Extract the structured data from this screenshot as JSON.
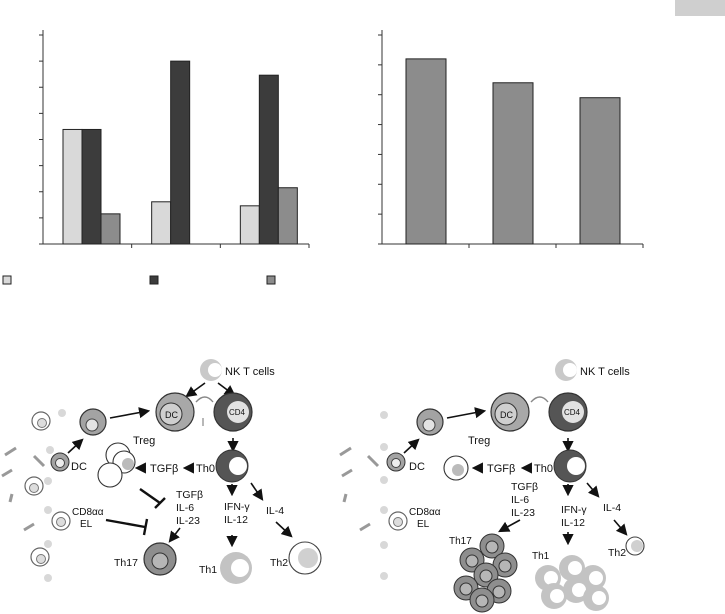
{
  "chart_data": [
    {
      "type": "bar",
      "categories": [
        "",
        "",
        ""
      ],
      "series": [
        {
          "values": [
            57,
            21,
            19
          ],
          "color": "#d9d9d9"
        },
        {
          "values": [
            57,
            91,
            84
          ],
          "color": "#3c3c3c"
        },
        {
          "values": [
            15,
            0,
            28
          ],
          "color": "#8c8c8c"
        }
      ],
      "ylim": [
        0,
        104
      ],
      "yticks": 8,
      "legend_swatches": [
        "#d9d9d9",
        "#3c3c3c",
        "#8c8c8c"
      ],
      "grid": false
    },
    {
      "type": "bar",
      "categories": [
        "",
        "",
        ""
      ],
      "series": [
        {
          "values": [
            6.2,
            5.4,
            4.9
          ],
          "color": "#8c8c8c"
        }
      ],
      "ylim": [
        0,
        7
      ],
      "yticks": 7,
      "grid": false
    }
  ],
  "diagram": {
    "left": {
      "nkt": "NK T cells",
      "dc_main": "DC",
      "cd4": "CD4",
      "treg": "Treg",
      "dc_side": "DC",
      "tgfb": "TGFβ",
      "th0": "Th0",
      "cyto_th17": [
        "TGFβ",
        "IL-6",
        "IL-23"
      ],
      "ifn": "IFN-γ",
      "il12": "IL-12",
      "il4": "IL-4",
      "cd8": "CD8αα",
      "el": "EL",
      "th17": "Th17",
      "th1": "Th1",
      "th2": "Th2"
    },
    "right": {
      "nkt": "NK T cells",
      "dc_main": "DC",
      "cd4": "CD4",
      "treg": "Treg",
      "dc_side": "DC",
      "tgfb": "TGFβ",
      "th0": "Th0",
      "cyto_th17": [
        "TGFβ",
        "IL-6",
        "IL-23"
      ],
      "ifn": "IFN-γ",
      "il12": "IL-12",
      "il4": "IL-4",
      "cd8": "CD8αα",
      "el": "EL",
      "th17": "Th17",
      "th1": "Th1",
      "th2": "Th2"
    }
  },
  "colors": {
    "light_gray": "#d9d9d9",
    "dark_gray": "#3c3c3c",
    "mid_gray": "#8c8c8c",
    "cell_outer": "#6e6e6e",
    "cell_dark": "#555555"
  }
}
